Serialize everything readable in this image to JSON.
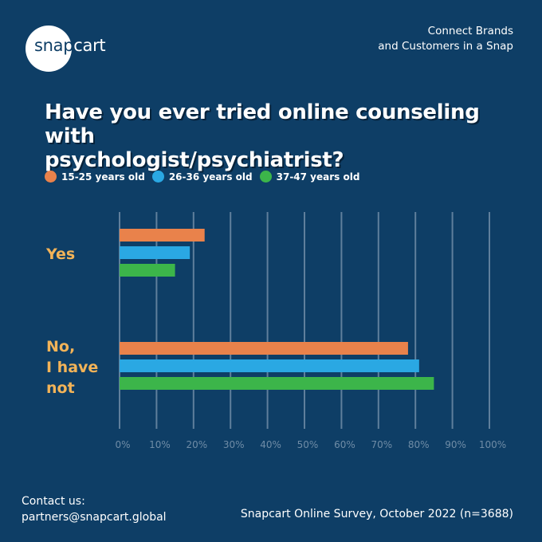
{
  "brand": {
    "logo_text_part1": "snap",
    "logo_text_part2": "cart",
    "tagline_line1": "Connect Brands",
    "tagline_line2": "and Customers in a Snap"
  },
  "colors": {
    "background": "#0e3e66",
    "accent": "#f2b358",
    "gridline": "#5f7f9c",
    "tick": "#6f8ca6"
  },
  "chart_data": {
    "type": "bar",
    "orientation": "horizontal",
    "title_line1": "Have you ever tried online counseling with",
    "title_line2": "psychologist/psychiatrist?",
    "categories": [
      "Yes",
      "No, I have not"
    ],
    "category_lines": [
      [
        "Yes"
      ],
      [
        "No,",
        "I have",
        "not"
      ]
    ],
    "series": [
      {
        "name": "15-25 years old",
        "color": "#e9824b",
        "values": [
          23,
          78
        ]
      },
      {
        "name": "26-36 years old",
        "color": "#2aa8e3",
        "values": [
          19,
          81
        ]
      },
      {
        "name": "37-47 years old",
        "color": "#3cb54a",
        "values": [
          15,
          85
        ]
      }
    ],
    "xlim": [
      0,
      100
    ],
    "xticks": [
      "0%",
      "10%",
      "20%",
      "30%",
      "40%",
      "50%",
      "60%",
      "70%",
      "80%",
      "90%",
      "100%"
    ],
    "grid": true,
    "legend_position": "top-left"
  },
  "footer": {
    "contact_label": "Contact us:",
    "contact_email": "partners@snapcart.global",
    "source": "Snapcart Online Survey, October 2022 (n=3688)"
  }
}
